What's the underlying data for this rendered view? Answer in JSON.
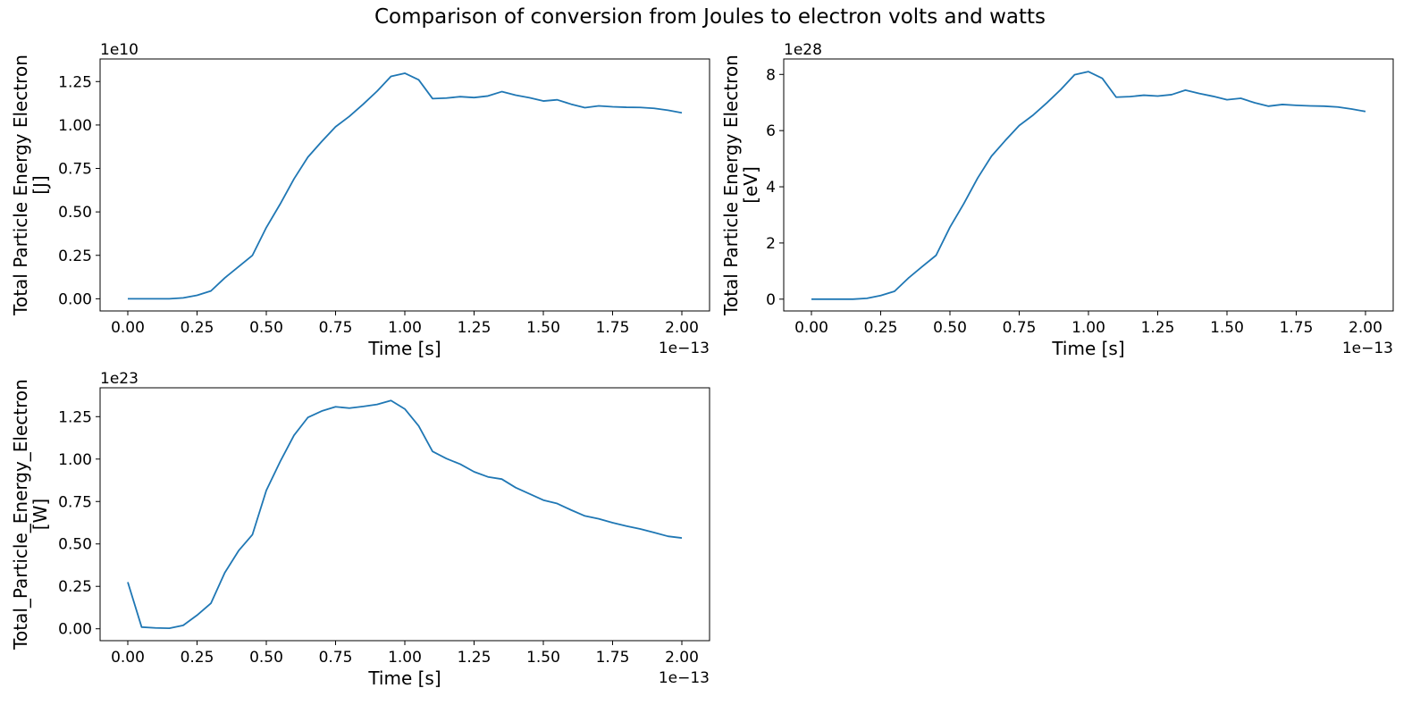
{
  "figure": {
    "title": "Comparison of conversion from Joules to electron volts and watts",
    "line_color": "#1f77b4"
  },
  "chart_data": [
    {
      "type": "line",
      "title": "",
      "xlabel": "Time [s]",
      "ylabel": "Total Particle Energy Electron\n[J]",
      "x_offset_label": "1e−13",
      "y_offset_label": "1e10",
      "xlim": [
        -0.1,
        2.1
      ],
      "ylim": [
        -0.07,
        1.38
      ],
      "xticks": [
        0.0,
        0.25,
        0.5,
        0.75,
        1.0,
        1.25,
        1.5,
        1.75,
        2.0
      ],
      "xtick_labels": [
        "0.00",
        "0.25",
        "0.50",
        "0.75",
        "1.00",
        "1.25",
        "1.50",
        "1.75",
        "2.00"
      ],
      "yticks": [
        0.0,
        0.25,
        0.5,
        0.75,
        1.0,
        1.25
      ],
      "ytick_labels": [
        "0.00",
        "0.25",
        "0.50",
        "0.75",
        "1.00",
        "1.25"
      ],
      "grid": false,
      "x": [
        0.0,
        0.05,
        0.1,
        0.15,
        0.2,
        0.25,
        0.3,
        0.35,
        0.4,
        0.45,
        0.5,
        0.55,
        0.6,
        0.65,
        0.7,
        0.75,
        0.8,
        0.85,
        0.9,
        0.95,
        1.0,
        1.05,
        1.1,
        1.15,
        1.2,
        1.25,
        1.3,
        1.35,
        1.4,
        1.45,
        1.5,
        1.55,
        1.6,
        1.65,
        1.7,
        1.75,
        1.8,
        1.85,
        1.9,
        1.95,
        2.0
      ],
      "series": [
        {
          "values": [
            0.0,
            0.0,
            0.0,
            0.0,
            0.005,
            0.02,
            0.045,
            0.12,
            0.185,
            0.25,
            0.41,
            0.545,
            0.69,
            0.815,
            0.905,
            0.99,
            1.05,
            1.12,
            1.195,
            1.28,
            1.298,
            1.26,
            1.152,
            1.155,
            1.163,
            1.158,
            1.167,
            1.192,
            1.172,
            1.157,
            1.138,
            1.145,
            1.12,
            1.1,
            1.11,
            1.105,
            1.102,
            1.101,
            1.096,
            1.085,
            1.07
          ]
        }
      ]
    },
    {
      "type": "line",
      "title": "",
      "xlabel": "Time [s]",
      "ylabel": "Total Particle Energy Electron\n[eV]",
      "x_offset_label": "1e−13",
      "y_offset_label": "1e28",
      "xlim": [
        -0.1,
        2.1
      ],
      "ylim": [
        -0.42,
        8.55
      ],
      "xticks": [
        0.0,
        0.25,
        0.5,
        0.75,
        1.0,
        1.25,
        1.5,
        1.75,
        2.0
      ],
      "xtick_labels": [
        "0.00",
        "0.25",
        "0.50",
        "0.75",
        "1.00",
        "1.25",
        "1.50",
        "1.75",
        "2.00"
      ],
      "yticks": [
        0,
        2,
        4,
        6,
        8
      ],
      "ytick_labels": [
        "0",
        "2",
        "4",
        "6",
        "8"
      ],
      "grid": false,
      "x": [
        0.0,
        0.05,
        0.1,
        0.15,
        0.2,
        0.25,
        0.3,
        0.35,
        0.4,
        0.45,
        0.5,
        0.55,
        0.6,
        0.65,
        0.7,
        0.75,
        0.8,
        0.85,
        0.9,
        0.95,
        1.0,
        1.05,
        1.1,
        1.15,
        1.2,
        1.25,
        1.3,
        1.35,
        1.4,
        1.45,
        1.5,
        1.55,
        1.6,
        1.65,
        1.7,
        1.75,
        1.8,
        1.85,
        1.9,
        1.95,
        2.0
      ],
      "series": [
        {
          "values": [
            0.0,
            0.0,
            0.0,
            0.0,
            0.03,
            0.13,
            0.28,
            0.75,
            1.16,
            1.56,
            2.56,
            3.4,
            4.31,
            5.09,
            5.65,
            6.18,
            6.55,
            6.99,
            7.46,
            7.99,
            8.1,
            7.86,
            7.19,
            7.21,
            7.26,
            7.23,
            7.28,
            7.44,
            7.32,
            7.22,
            7.1,
            7.15,
            6.99,
            6.87,
            6.93,
            6.9,
            6.88,
            6.87,
            6.84,
            6.77,
            6.68
          ]
        }
      ]
    },
    {
      "type": "line",
      "title": "",
      "xlabel": "Time [s]",
      "ylabel": "Total_Particle_Energy_Electron\n[W]",
      "x_offset_label": "1e−13",
      "y_offset_label": "1e23",
      "xlim": [
        -0.1,
        2.1
      ],
      "ylim": [
        -0.07,
        1.42
      ],
      "xticks": [
        0.0,
        0.25,
        0.5,
        0.75,
        1.0,
        1.25,
        1.5,
        1.75,
        2.0
      ],
      "xtick_labels": [
        "0.00",
        "0.25",
        "0.50",
        "0.75",
        "1.00",
        "1.25",
        "1.50",
        "1.75",
        "2.00"
      ],
      "yticks": [
        0.0,
        0.25,
        0.5,
        0.75,
        1.0,
        1.25
      ],
      "ytick_labels": [
        "0.00",
        "0.25",
        "0.50",
        "0.75",
        "1.00",
        "1.25"
      ],
      "grid": false,
      "x": [
        0.0,
        0.05,
        0.1,
        0.15,
        0.2,
        0.25,
        0.3,
        0.35,
        0.4,
        0.45,
        0.5,
        0.55,
        0.6,
        0.65,
        0.7,
        0.75,
        0.8,
        0.85,
        0.9,
        0.95,
        1.0,
        1.05,
        1.1,
        1.15,
        1.2,
        1.25,
        1.3,
        1.35,
        1.4,
        1.45,
        1.5,
        1.55,
        1.6,
        1.65,
        1.7,
        1.75,
        1.8,
        1.85,
        1.9,
        1.95,
        2.0
      ],
      "series": [
        {
          "values": [
            0.275,
            0.01,
            0.005,
            0.003,
            0.02,
            0.08,
            0.15,
            0.33,
            0.46,
            0.555,
            0.815,
            0.985,
            1.14,
            1.245,
            1.283,
            1.308,
            1.3,
            1.31,
            1.322,
            1.345,
            1.295,
            1.195,
            1.045,
            1.003,
            0.97,
            0.925,
            0.895,
            0.882,
            0.832,
            0.795,
            0.758,
            0.738,
            0.7,
            0.665,
            0.648,
            0.625,
            0.605,
            0.588,
            0.567,
            0.545,
            0.535
          ]
        }
      ]
    }
  ]
}
